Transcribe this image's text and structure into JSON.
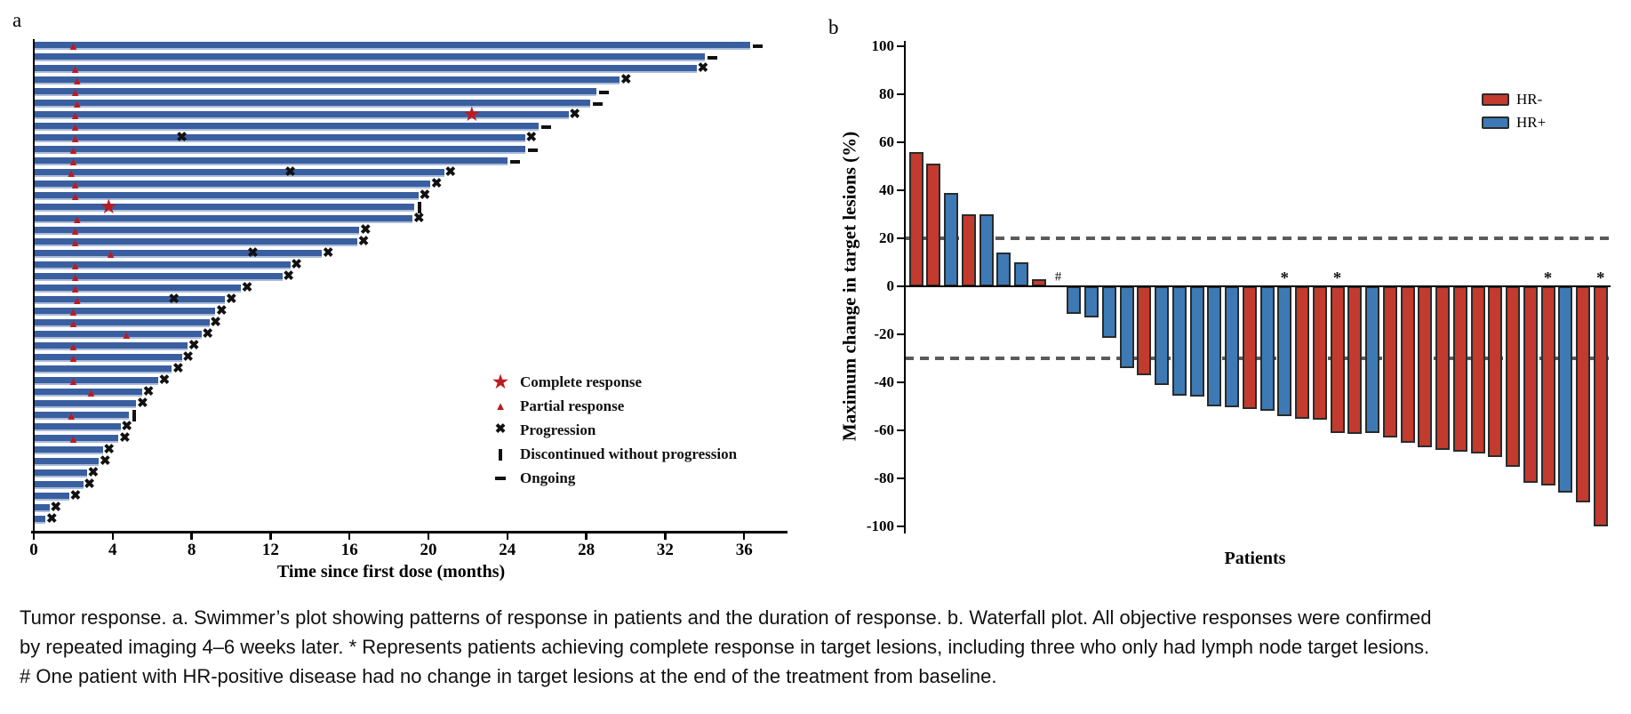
{
  "panel_a": {
    "label": "a",
    "x_axis_title": "Time since first dose (months)",
    "legend": {
      "complete_response": "Complete response",
      "partial_response": "Partial response",
      "progression": "Progression",
      "discontinued": "Discontinued without progression",
      "ongoing": "Ongoing"
    }
  },
  "panel_b": {
    "label": "b",
    "y_axis_title": "Maximum change in target lesions (%)",
    "x_axis_title": "Patients",
    "legend": {
      "hr_neg": "HR-",
      "hr_pos": "HR+"
    },
    "annotations": {
      "asterisk": "*",
      "hash": "#"
    }
  },
  "caption": "Tumor response. a. Swimmer’s plot showing patterns of response in patients and the duration of response. b. Waterfall plot. All objective responses were confirmed by repeated imaging 4–6 weeks later. * Represents patients achieving complete response in target lesions, including three who only had lymph node target lesions. # One patient with HR-positive disease had no change in target lesions at the end of the treatment from baseline.",
  "colors": {
    "swimmer_bar": "#3a5fa0",
    "response_red": "#bc1b21",
    "hr_negative": "#c23b2e",
    "hr_positive": "#3d7ab5",
    "bar_outline": "#2b2b2b",
    "dashed_line": "#5b5b5b",
    "axis": "#000000"
  },
  "chart_data": [
    {
      "type": "bar",
      "variant": "swimmer-horizontal",
      "title": "Swimmer's plot of response duration",
      "xlabel": "Time since first dose (months)",
      "xlim": [
        0,
        38
      ],
      "xticks": [
        0,
        4,
        8,
        12,
        16,
        20,
        24,
        28,
        32,
        36
      ],
      "marker_meanings": {
        "star": "Complete response",
        "triangle": "Partial response",
        "x": "Progression",
        "bar": "Discontinued without progression",
        "dash": "Ongoing"
      },
      "patients": [
        {
          "duration": 36.3,
          "end_marker": "ongoing",
          "partial_response_at": 2.0
        },
        {
          "duration": 34.0,
          "end_marker": "ongoing"
        },
        {
          "duration": 33.6,
          "end_marker": "progression",
          "partial_response_at": 2.1
        },
        {
          "duration": 29.7,
          "end_marker": "progression",
          "partial_response_at": 2.2
        },
        {
          "duration": 28.5,
          "end_marker": "ongoing",
          "partial_response_at": 2.1
        },
        {
          "duration": 28.2,
          "end_marker": "ongoing",
          "partial_response_at": 2.2
        },
        {
          "duration": 27.1,
          "end_marker": "progression",
          "partial_response_at": 2.1,
          "complete_response_at": 22.2
        },
        {
          "duration": 25.6,
          "end_marker": "ongoing",
          "partial_response_at": 2.1
        },
        {
          "duration": 24.9,
          "end_marker": "progression",
          "partial_response_at": 2.1,
          "progression_at": 7.5
        },
        {
          "duration": 24.9,
          "end_marker": "ongoing",
          "partial_response_at": 2.0
        },
        {
          "duration": 24.0,
          "end_marker": "ongoing",
          "partial_response_at": 2.0
        },
        {
          "duration": 20.8,
          "end_marker": "progression",
          "partial_response_at": 1.9,
          "progression_at": 13.0
        },
        {
          "duration": 20.1,
          "end_marker": "progression",
          "partial_response_at": 2.1
        },
        {
          "duration": 19.5,
          "end_marker": "progression",
          "partial_response_at": 2.1
        },
        {
          "duration": 19.3,
          "end_marker": "discontinued",
          "complete_response_at": 3.8
        },
        {
          "duration": 19.2,
          "end_marker": "progression",
          "partial_response_at": 2.2
        },
        {
          "duration": 16.5,
          "end_marker": "progression",
          "partial_response_at": 2.1
        },
        {
          "duration": 16.4,
          "end_marker": "progression",
          "partial_response_at": 2.1
        },
        {
          "duration": 14.6,
          "end_marker": "progression",
          "partial_response_at": 3.9,
          "progression_at": 11.1
        },
        {
          "duration": 13.0,
          "end_marker": "progression",
          "partial_response_at": 2.1
        },
        {
          "duration": 12.6,
          "end_marker": "progression",
          "partial_response_at": 2.1
        },
        {
          "duration": 10.5,
          "end_marker": "progression",
          "partial_response_at": 2.1
        },
        {
          "duration": 9.7,
          "end_marker": "progression",
          "partial_response_at": 2.2,
          "progression_at": 7.1
        },
        {
          "duration": 9.2,
          "end_marker": "progression",
          "partial_response_at": 2.0
        },
        {
          "duration": 8.9,
          "end_marker": "progression",
          "partial_response_at": 2.0
        },
        {
          "duration": 8.5,
          "end_marker": "progression",
          "partial_response_at": 4.7
        },
        {
          "duration": 7.8,
          "end_marker": "progression",
          "partial_response_at": 2.0
        },
        {
          "duration": 7.5,
          "end_marker": "progression",
          "partial_response_at": 2.0
        },
        {
          "duration": 7.0,
          "end_marker": "progression"
        },
        {
          "duration": 6.3,
          "end_marker": "progression",
          "partial_response_at": 2.0
        },
        {
          "duration": 5.5,
          "end_marker": "progression",
          "partial_response_at": 2.9
        },
        {
          "duration": 5.2,
          "end_marker": "progression"
        },
        {
          "duration": 4.8,
          "end_marker": "discontinued",
          "partial_response_at": 1.9
        },
        {
          "duration": 4.4,
          "end_marker": "progression"
        },
        {
          "duration": 4.3,
          "end_marker": "progression",
          "partial_response_at": 2.0
        },
        {
          "duration": 3.5,
          "end_marker": "progression"
        },
        {
          "duration": 3.3,
          "end_marker": "progression"
        },
        {
          "duration": 2.7,
          "end_marker": "progression"
        },
        {
          "duration": 2.5,
          "end_marker": "progression"
        },
        {
          "duration": 1.8,
          "end_marker": "progression"
        },
        {
          "duration": 0.8,
          "end_marker": "progression"
        },
        {
          "duration": 0.6,
          "end_marker": "progression"
        }
      ]
    },
    {
      "type": "bar",
      "variant": "waterfall",
      "xlabel": "Patients",
      "ylabel": "Maximum change in target lesions (%)",
      "ylim": [
        -100,
        100
      ],
      "yticks": [
        100,
        80,
        60,
        40,
        20,
        0,
        -20,
        -40,
        -60,
        -80,
        -100
      ],
      "reference_lines": [
        20,
        -30
      ],
      "legend": [
        {
          "name": "HR-",
          "color": "#c23b2e"
        },
        {
          "name": "HR+",
          "color": "#3d7ab5"
        }
      ],
      "patients": [
        {
          "value": 56,
          "group": "HR-"
        },
        {
          "value": 51,
          "group": "HR-"
        },
        {
          "value": 39,
          "group": "HR+"
        },
        {
          "value": 30,
          "group": "HR-"
        },
        {
          "value": 30,
          "group": "HR+"
        },
        {
          "value": 14,
          "group": "HR+"
        },
        {
          "value": 10,
          "group": "HR+"
        },
        {
          "value": 3,
          "group": "HR-"
        },
        {
          "value": 0,
          "group": "HR+",
          "note": "#"
        },
        {
          "value": -11.5,
          "group": "HR+"
        },
        {
          "value": -13,
          "group": "HR+"
        },
        {
          "value": -21.5,
          "group": "HR+"
        },
        {
          "value": -34,
          "group": "HR+"
        },
        {
          "value": -37,
          "group": "HR-"
        },
        {
          "value": -41,
          "group": "HR+"
        },
        {
          "value": -45.5,
          "group": "HR+"
        },
        {
          "value": -46,
          "group": "HR+"
        },
        {
          "value": -50,
          "group": "HR+"
        },
        {
          "value": -50.5,
          "group": "HR+"
        },
        {
          "value": -51,
          "group": "HR-"
        },
        {
          "value": -52,
          "group": "HR+"
        },
        {
          "value": -54,
          "group": "HR+",
          "note": "*"
        },
        {
          "value": -55,
          "group": "HR-"
        },
        {
          "value": -55.5,
          "group": "HR-"
        },
        {
          "value": -61,
          "group": "HR-",
          "note": "*"
        },
        {
          "value": -61.5,
          "group": "HR-"
        },
        {
          "value": -61,
          "group": "HR+"
        },
        {
          "value": -63,
          "group": "HR-"
        },
        {
          "value": -65,
          "group": "HR-"
        },
        {
          "value": -67,
          "group": "HR-"
        },
        {
          "value": -68,
          "group": "HR-"
        },
        {
          "value": -69,
          "group": "HR-"
        },
        {
          "value": -69.5,
          "group": "HR-"
        },
        {
          "value": -71,
          "group": "HR-"
        },
        {
          "value": -75,
          "group": "HR-"
        },
        {
          "value": -82,
          "group": "HR-"
        },
        {
          "value": -83,
          "group": "HR-",
          "note": "*"
        },
        {
          "value": -86,
          "group": "HR+"
        },
        {
          "value": -90,
          "group": "HR-"
        },
        {
          "value": -100,
          "group": "HR-",
          "note": "*"
        }
      ]
    }
  ]
}
